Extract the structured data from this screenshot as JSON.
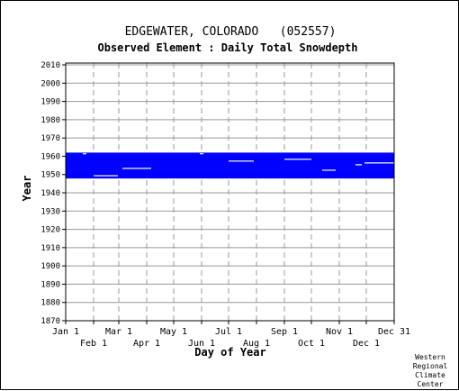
{
  "chart_data": {
    "type": "heatmap",
    "title": "EDGEWATER, COLORADO   (052557)",
    "subtitle": "Observed Element : Daily Total Snowdepth",
    "xlabel": "Day of Year",
    "ylabel": "Year",
    "x_ticks_upper": [
      "Jan 1",
      "Mar 1",
      "May 1",
      "Jul 1",
      "Sep 1",
      "Nov 1",
      "Dec 31"
    ],
    "x_ticks_lower": [
      "Feb 1",
      "Apr 1",
      "Jun 1",
      "Aug 1",
      "Oct 1",
      "Dec 1"
    ],
    "y_ticks": [
      2010,
      2000,
      1990,
      1980,
      1970,
      1960,
      1950,
      1940,
      1930,
      1920,
      1910,
      1900,
      1890,
      1880,
      1870
    ],
    "ylim": [
      1870,
      2011
    ],
    "xlim": [
      1,
      366
    ],
    "grid": true,
    "data_color": "#0000ff",
    "record_years": [
      1948,
      1962
    ],
    "missing_segments": [
      {
        "year": 1949,
        "day_start": 32,
        "day_end": 59
      },
      {
        "year": 1953,
        "day_start": 64,
        "day_end": 96
      },
      {
        "year": 1952,
        "day_start": 286,
        "day_end": 301
      },
      {
        "year": 1957,
        "day_start": 182,
        "day_end": 210
      },
      {
        "year": 1958,
        "day_start": 244,
        "day_end": 274
      },
      {
        "year": 1956,
        "day_start": 333,
        "day_end": 366
      },
      {
        "year": 1955,
        "day_start": 323,
        "day_end": 330
      },
      {
        "year": 1961,
        "day_start": 20,
        "day_end": 24
      },
      {
        "year": 1961,
        "day_start": 150,
        "day_end": 154
      }
    ]
  },
  "credit": [
    "Western",
    "Regional",
    "Climate",
    "Center"
  ]
}
